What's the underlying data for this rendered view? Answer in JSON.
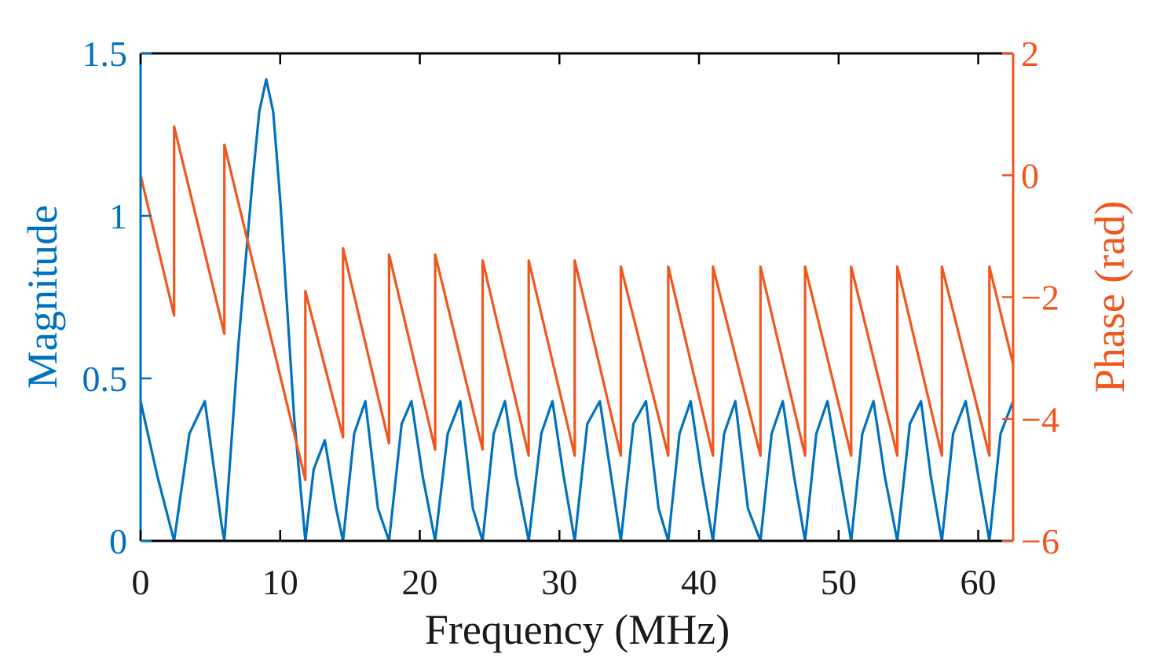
{
  "chart_data": {
    "type": "line",
    "title": "",
    "xlabel": "Frequency (MHz)",
    "ylabel_left": "Magnitude",
    "ylabel_right": "Phase (rad)",
    "xlim": [
      0,
      62.5
    ],
    "ylim_left": [
      0,
      1.5
    ],
    "ylim_right": [
      -6,
      2
    ],
    "x_ticks": [
      0,
      10,
      20,
      30,
      40,
      50,
      60
    ],
    "x_tick_labels": [
      "0",
      "10",
      "20",
      "30",
      "40",
      "50",
      "60"
    ],
    "y_left_ticks": [
      0,
      0.5,
      1,
      1.5
    ],
    "y_left_tick_labels": [
      "0",
      "0.5",
      "1",
      "1.5"
    ],
    "y_right_ticks": [
      -6,
      -4,
      -2,
      0,
      2
    ],
    "y_right_tick_labels": [
      "−6",
      "−4",
      "−2",
      "0",
      "2"
    ],
    "grid": false,
    "legend": "none",
    "colors": {
      "magnitude": "#0072BD",
      "phase": "#F0561D",
      "axes": "#000000"
    },
    "series": [
      {
        "name": "Magnitude",
        "axis": "left",
        "color": "#0072BD",
        "description": "Lobed magnitude response: peak ~1.42 at ~9 MHz, side lobes ~0.43, nulls at listed frequencies",
        "x": [
          0,
          1.2,
          2.4,
          3.5,
          4.6,
          5.8,
          6.0,
          7.0,
          8.0,
          8.5,
          9.0,
          9.5,
          10.0,
          11.0,
          11.8,
          12.4,
          13.2,
          14.0,
          14.5,
          15.3,
          16.1,
          17.0,
          17.8,
          18.7,
          19.4,
          20.2,
          21.1,
          22.0,
          22.9,
          23.8,
          24.5,
          25.3,
          26.1,
          26.9,
          27.8,
          28.7,
          29.5,
          30.3,
          31.1,
          32.0,
          32.9,
          33.7,
          34.4,
          35.3,
          36.2,
          37.1,
          37.8,
          38.6,
          39.4,
          40.2,
          41.0,
          41.8,
          42.6,
          43.5,
          44.4,
          45.2,
          46.0,
          46.8,
          47.6,
          48.4,
          49.2,
          50.1,
          50.9,
          51.7,
          52.5,
          53.3,
          54.2,
          55.1,
          55.9,
          56.6,
          57.4,
          58.2,
          59.1,
          60.0,
          60.8,
          61.6,
          62.5
        ],
        "y": [
          0.43,
          0.2,
          0.0,
          0.33,
          0.43,
          0.05,
          0.0,
          0.6,
          1.1,
          1.32,
          1.42,
          1.32,
          1.05,
          0.38,
          0.0,
          0.22,
          0.31,
          0.1,
          0.0,
          0.33,
          0.43,
          0.1,
          0.0,
          0.36,
          0.43,
          0.2,
          0.0,
          0.33,
          0.43,
          0.1,
          0.0,
          0.33,
          0.43,
          0.2,
          0.0,
          0.33,
          0.43,
          0.2,
          0.0,
          0.36,
          0.43,
          0.2,
          0.0,
          0.36,
          0.43,
          0.1,
          0.0,
          0.33,
          0.43,
          0.2,
          0.0,
          0.33,
          0.43,
          0.1,
          0.0,
          0.33,
          0.43,
          0.2,
          0.0,
          0.33,
          0.43,
          0.2,
          0.0,
          0.33,
          0.43,
          0.2,
          0.0,
          0.36,
          0.43,
          0.2,
          0.0,
          0.33,
          0.43,
          0.2,
          0.0,
          0.33,
          0.43
        ]
      },
      {
        "name": "Phase",
        "axis": "right",
        "color": "#F0561D",
        "description": "Wrapped linear phase (sawtooth) with jumps at magnitude nulls",
        "x": [
          0,
          2.4,
          2.4,
          6.0,
          6.0,
          11.8,
          11.8,
          14.5,
          14.5,
          17.8,
          17.8,
          21.1,
          21.1,
          24.5,
          24.5,
          27.8,
          27.8,
          31.1,
          31.1,
          34.4,
          34.4,
          37.8,
          37.8,
          41.0,
          41.0,
          44.4,
          44.4,
          47.6,
          47.6,
          50.9,
          50.9,
          54.2,
          54.2,
          57.4,
          57.4,
          60.8,
          60.8,
          62.5
        ],
        "y": [
          0.0,
          -2.3,
          0.8,
          -2.6,
          0.5,
          -5.0,
          -1.9,
          -4.3,
          -1.2,
          -4.4,
          -1.3,
          -4.5,
          -1.3,
          -4.5,
          -1.4,
          -4.6,
          -1.4,
          -4.6,
          -1.4,
          -4.6,
          -1.5,
          -4.6,
          -1.5,
          -4.6,
          -1.5,
          -4.6,
          -1.5,
          -4.6,
          -1.5,
          -4.6,
          -1.5,
          -4.6,
          -1.5,
          -4.6,
          -1.5,
          -4.6,
          -1.5,
          -3.1
        ]
      }
    ]
  }
}
